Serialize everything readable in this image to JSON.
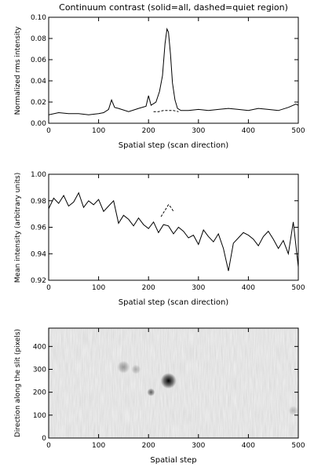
{
  "chart_data": [
    {
      "type": "line",
      "title": "Continuum contrast (solid=all, dashed=quiet region)",
      "xlabel": "Spatial step (scan direction)",
      "ylabel": "Normalized rms intensity",
      "xlim": [
        0,
        500
      ],
      "ylim": [
        0,
        0.1
      ],
      "xticks": [
        "0",
        "100",
        "200",
        "300",
        "400",
        "500"
      ],
      "yticks": [
        "0.00",
        "0.02",
        "0.04",
        "0.06",
        "0.08",
        "0.10"
      ],
      "grid": false,
      "series": [
        {
          "style": "solid",
          "x": [
            0,
            20,
            40,
            60,
            80,
            100,
            110,
            120,
            126,
            132,
            140,
            160,
            180,
            195,
            200,
            205,
            215,
            222,
            228,
            233,
            237,
            240,
            244,
            248,
            253,
            258,
            265,
            280,
            300,
            320,
            340,
            360,
            380,
            400,
            420,
            440,
            460,
            480,
            495,
            500
          ],
          "y": [
            0.008,
            0.01,
            0.009,
            0.009,
            0.008,
            0.009,
            0.01,
            0.013,
            0.022,
            0.015,
            0.014,
            0.011,
            0.014,
            0.016,
            0.026,
            0.017,
            0.02,
            0.03,
            0.045,
            0.075,
            0.089,
            0.086,
            0.065,
            0.038,
            0.022,
            0.014,
            0.012,
            0.012,
            0.013,
            0.012,
            0.013,
            0.014,
            0.013,
            0.012,
            0.014,
            0.013,
            0.012,
            0.015,
            0.018,
            0.017
          ]
        },
        {
          "style": "dashed",
          "x": [
            210,
            220,
            230,
            240,
            250,
            260
          ],
          "y": [
            0.011,
            0.011,
            0.012,
            0.012,
            0.012,
            0.011
          ]
        }
      ]
    },
    {
      "type": "line",
      "xlabel": "Spatial step (scan direction)",
      "ylabel": "Mean intensity (arbitrary units)",
      "xlim": [
        0,
        500
      ],
      "ylim": [
        0.92,
        1.0
      ],
      "xticks": [
        "0",
        "100",
        "200",
        "300",
        "400",
        "500"
      ],
      "yticks": [
        "0.92",
        "0.94",
        "0.96",
        "0.98",
        "1.00"
      ],
      "grid": false,
      "series": [
        {
          "style": "solid",
          "x": [
            0,
            10,
            20,
            30,
            40,
            50,
            60,
            70,
            80,
            90,
            100,
            110,
            120,
            130,
            140,
            150,
            160,
            170,
            180,
            190,
            200,
            210,
            220,
            230,
            240,
            250,
            260,
            270,
            280,
            290,
            300,
            310,
            320,
            330,
            340,
            350,
            360,
            370,
            380,
            390,
            400,
            410,
            420,
            430,
            440,
            450,
            460,
            470,
            480,
            490,
            500
          ],
          "y": [
            0.974,
            0.982,
            0.978,
            0.984,
            0.976,
            0.979,
            0.986,
            0.975,
            0.98,
            0.977,
            0.981,
            0.972,
            0.976,
            0.98,
            0.963,
            0.969,
            0.966,
            0.961,
            0.967,
            0.962,
            0.959,
            0.964,
            0.956,
            0.962,
            0.961,
            0.955,
            0.96,
            0.957,
            0.952,
            0.954,
            0.947,
            0.958,
            0.953,
            0.949,
            0.955,
            0.944,
            0.927,
            0.948,
            0.952,
            0.956,
            0.954,
            0.951,
            0.946,
            0.953,
            0.957,
            0.951,
            0.944,
            0.95,
            0.94,
            0.964,
            0.93
          ]
        },
        {
          "style": "dashed",
          "x": [
            225,
            230,
            235,
            240,
            245,
            250
          ],
          "y": [
            0.968,
            0.971,
            0.974,
            0.977,
            0.975,
            0.972
          ]
        }
      ]
    },
    {
      "type": "heatmap",
      "xlabel": "Spatial step",
      "ylabel": "Direction along the slit (pixels)",
      "xlim": [
        0,
        500
      ],
      "ylim": [
        0,
        480
      ],
      "xticks": [
        "0",
        "100",
        "200",
        "300",
        "400",
        "500"
      ],
      "yticks": [
        "0",
        "100",
        "200",
        "300",
        "400"
      ],
      "colormap": "grayscale-inverted",
      "features": [
        {
          "x": 240,
          "y": 250,
          "intensity": 1.0,
          "size": 10
        },
        {
          "x": 205,
          "y": 200,
          "intensity": 0.6,
          "size": 5
        },
        {
          "x": 150,
          "y": 310,
          "intensity": 0.35,
          "size": 8
        },
        {
          "x": 175,
          "y": 300,
          "intensity": 0.25,
          "size": 6
        },
        {
          "x": 490,
          "y": 120,
          "intensity": 0.2,
          "size": 6
        }
      ]
    }
  ]
}
